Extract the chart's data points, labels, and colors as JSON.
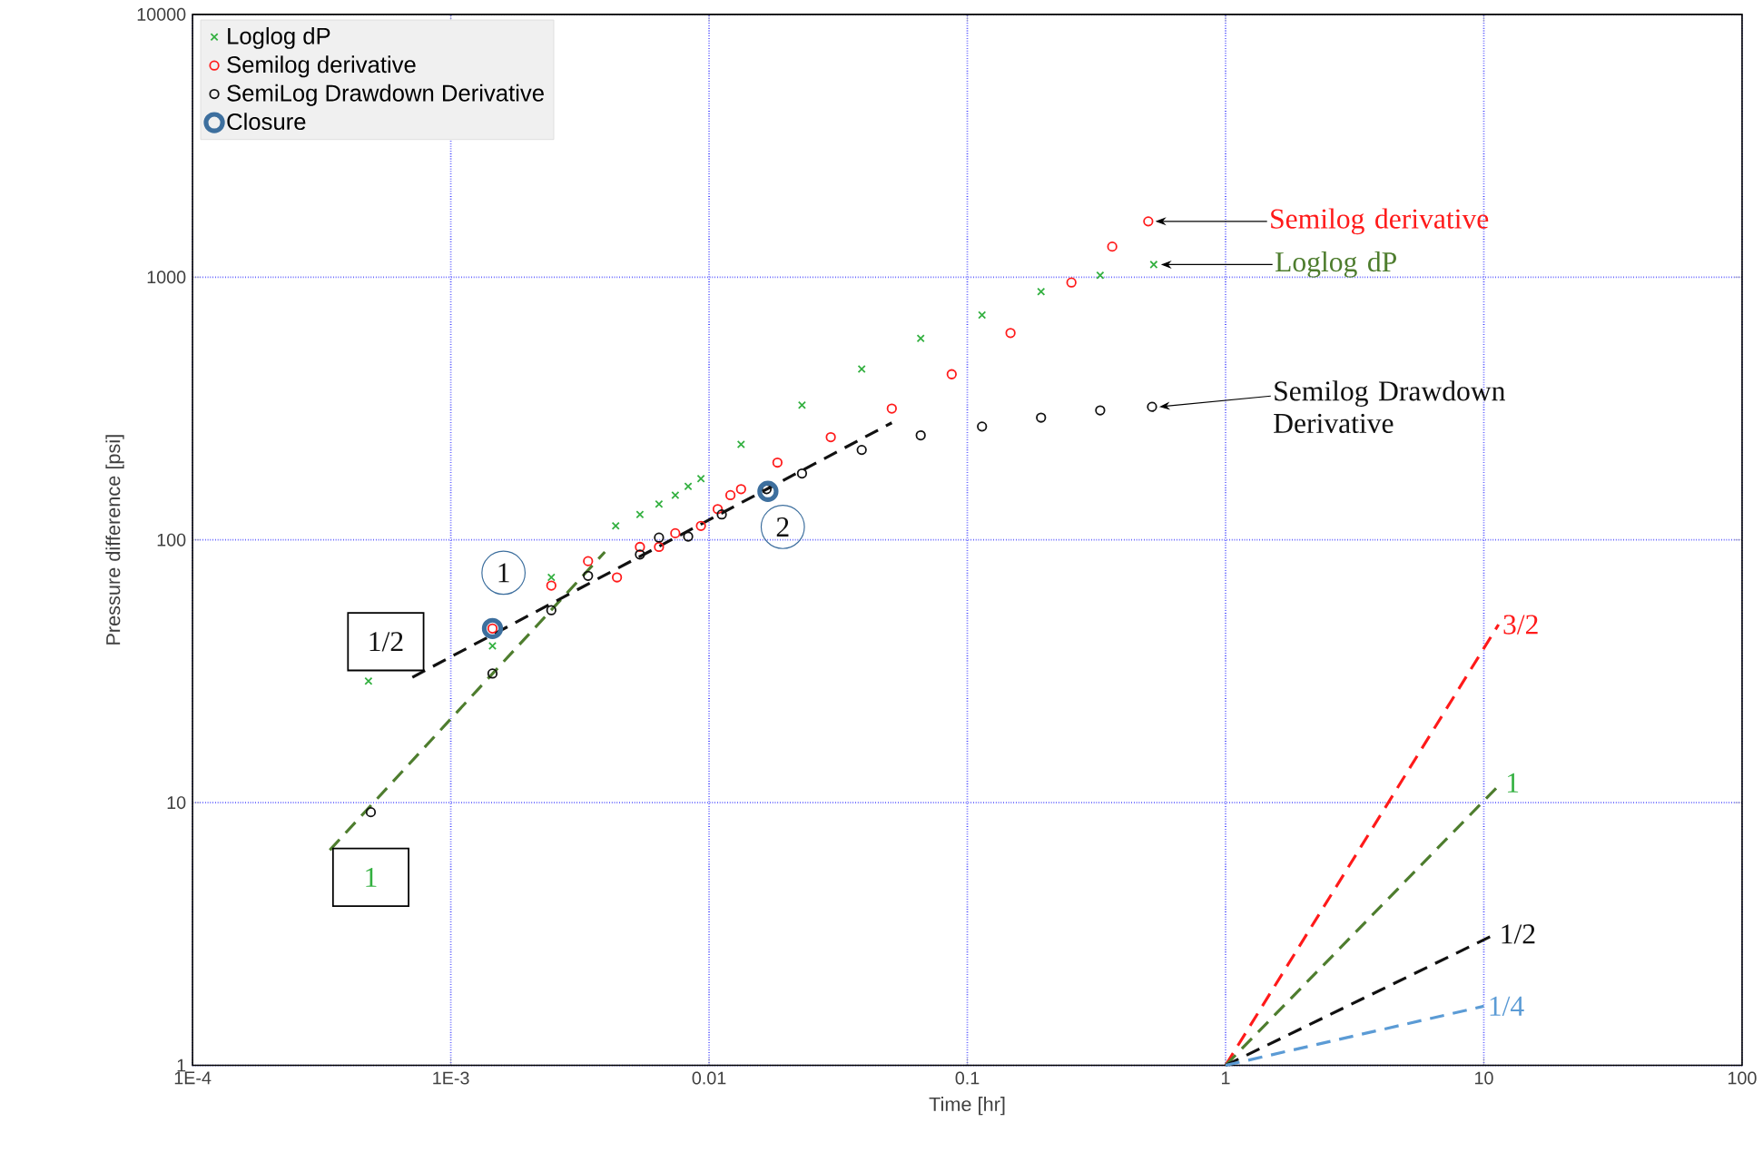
{
  "chart_data": {
    "type": "scatter",
    "xlabel": "Time [hr]",
    "ylabel": "Pressure difference [psi]",
    "log": "xy",
    "grid": true,
    "legend": "top left",
    "xlim": [
      0.0001,
      100
    ],
    "ylim": [
      1,
      10000
    ],
    "xticks": [
      {
        "value": 0.0001,
        "label": "1E-4"
      },
      {
        "value": 0.001,
        "label": "1E-3"
      },
      0.01,
      0.1,
      1,
      10,
      100
    ],
    "yticks": [
      1,
      10,
      100,
      1000,
      10000
    ],
    "series": [
      {
        "name": "Loglog dP",
        "color": "#33b040",
        "marker": "cross",
        "x": [
          0.00048,
          0.00145,
          0.00245,
          0.00435,
          0.0054,
          0.0064,
          0.0074,
          0.0083,
          0.0093,
          0.0133,
          0.0229,
          0.039,
          0.066,
          0.114,
          0.193,
          0.327,
          0.527
        ],
        "values": [
          29,
          39.5,
          72,
          113,
          125,
          137,
          148,
          160,
          171,
          231,
          326,
          447,
          585,
          718,
          881,
          1016,
          1117
        ]
      },
      {
        "name": "Semilog derivative",
        "color": "#ff1a1a",
        "marker": "circle",
        "x": [
          0.00145,
          0.00245,
          0.0034,
          0.0044,
          0.0054,
          0.0064,
          0.0074,
          0.0093,
          0.0108,
          0.0121,
          0.0133,
          0.0184,
          0.0296,
          0.051,
          0.087,
          0.147,
          0.253,
          0.364,
          0.502
        ],
        "values": [
          46,
          67,
          83,
          72,
          94,
          94,
          106,
          113,
          131,
          148,
          156,
          197,
          246,
          316,
          427,
          613,
          954,
          1307,
          1630
        ]
      },
      {
        "name": "SemiLog Drawdown Derivative",
        "color": "#111111",
        "marker": "circle",
        "x": [
          0.00049,
          0.00145,
          0.00245,
          0.0034,
          0.0054,
          0.0064,
          0.0083,
          0.0112,
          0.0167,
          0.0229,
          0.039,
          0.066,
          0.114,
          0.193,
          0.327,
          0.519
        ],
        "values": [
          9.2,
          31,
          54,
          73,
          88,
          102,
          103,
          125,
          156,
          179,
          220,
          250,
          270,
          292,
          311,
          321
        ]
      },
      {
        "name": "Closure",
        "color": "#3d6f9e",
        "marker": "circle",
        "x": [
          0.00145,
          0.0169
        ],
        "values": [
          46,
          153
        ]
      },
      {
        "type": "line",
        "color": "#4e7d2e",
        "marker": "none",
        "line_style": "dashed",
        "x": [
          0.00034,
          0.00395
        ],
        "values": [
          6.6,
          90
        ]
      },
      {
        "type": "line",
        "color": "#111111",
        "marker": "none",
        "line_style": "dashed",
        "x": [
          0.00071,
          0.051
        ],
        "values": [
          30,
          279
        ]
      },
      {
        "type": "line",
        "color": "#ff1a1a",
        "marker": "none",
        "line_style": "dashed",
        "x": [
          1,
          11.4
        ],
        "values": [
          1,
          47.6
        ]
      },
      {
        "type": "line",
        "color": "#4e7d2e",
        "marker": "none",
        "line_style": "dashed",
        "x": [
          1,
          11.7
        ],
        "values": [
          1,
          11.9
        ]
      },
      {
        "type": "line",
        "color": "#111111",
        "marker": "none",
        "line_style": "dashed",
        "x": [
          1,
          11.1
        ],
        "values": [
          1,
          3.16
        ]
      },
      {
        "type": "line",
        "color": "#5b9bd5",
        "marker": "none",
        "line_style": "dashed",
        "x": [
          1,
          10
        ],
        "values": [
          1,
          1.68
        ]
      }
    ],
    "annotations": [
      {
        "text": "Semilog derivative",
        "x": 0.502,
        "y": 1630
      },
      {
        "text": "Loglog dP",
        "x": 0.527,
        "y": 1117
      },
      {
        "text": "Semilog Drawdown Derivative",
        "x": 0.519,
        "y": 321
      },
      {
        "text": "1/2",
        "x": 0.00056,
        "y": 41
      },
      {
        "text": "1",
        "x": 0.00049,
        "y": 5.2
      },
      {
        "text": "1",
        "x": 0.0016,
        "y": 75
      },
      {
        "text": "2",
        "x": 0.0193,
        "y": 112
      },
      {
        "text": "3/2",
        "x": 11.4,
        "y": 47.6
      },
      {
        "text": "1",
        "x": 11.7,
        "y": 11.9
      },
      {
        "text": "1/2",
        "x": 11.1,
        "y": 3.16
      },
      {
        "text": "1/4",
        "x": 10,
        "y": 1.68
      }
    ]
  }
}
